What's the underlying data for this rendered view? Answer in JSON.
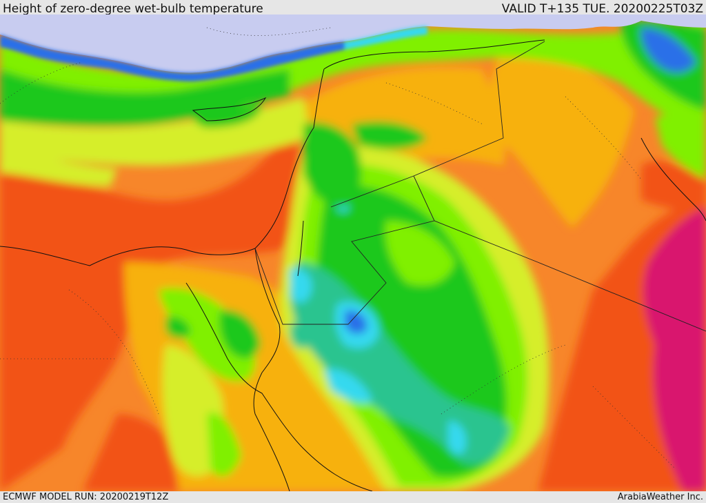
{
  "header": {
    "title": "Height of zero-degree wet-bulb temperature",
    "valid_time": "VALID T+135 TUE. 20200225T03Z"
  },
  "footer": {
    "model_run": "ECMWF MODEL RUN: 20200219T12Z",
    "credit": "ArabiaWeather Inc."
  },
  "map": {
    "field": "zero-degree wet-bulb height",
    "color_scale": [
      "#c8ccf0",
      "#2b6fe8",
      "#35d9ef",
      "#2bc48f",
      "#1ec81e",
      "#80f000",
      "#d6ee2a",
      "#f7b10f",
      "#f7862a",
      "#f25318",
      "#d9126e"
    ],
    "colors": {
      "sea_low": "#c8ccf0",
      "blue": "#2b6fe8",
      "cyan": "#35d9ef",
      "teal": "#2bc48f",
      "green": "#1ec81e",
      "lime": "#80f000",
      "yellow": "#d6ee2a",
      "amber": "#f7b10f",
      "orange": "#f7862a",
      "red": "#f25318",
      "magenta": "#d9126e"
    }
  }
}
